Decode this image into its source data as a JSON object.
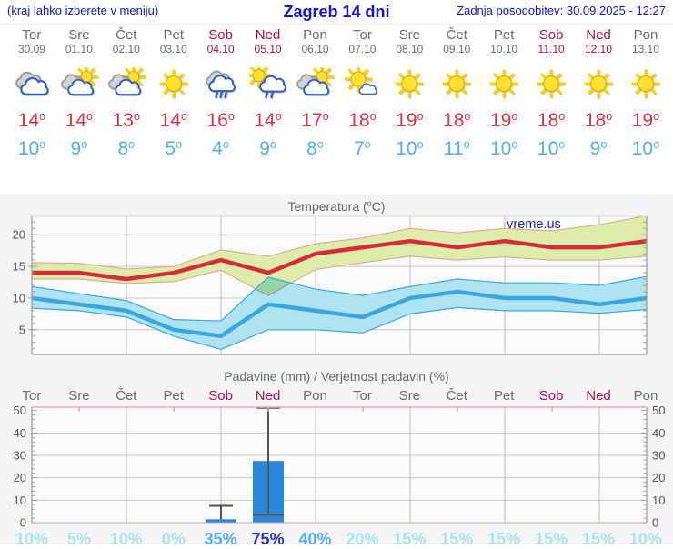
{
  "header": {
    "menu_hint": "(kraj lahko izberete v meniju)",
    "title": "Zagreb 14 dni",
    "last_update": "Zadnja posodobitev: 30.09.2025 - 12:27"
  },
  "units": {
    "degree_superscript": "o",
    "percent": "%"
  },
  "colors": {
    "header_blue": "#1313cd",
    "weekday_gray": "#6b6b6b",
    "weekend_red": "#b0104e",
    "tmax_red": "#dd2f3d",
    "tmin_blue": "#4fb0ea",
    "chart_title_gray": "#666666",
    "max_band_green": "#dcedaa",
    "band_edge_salmon": "#e89a8a",
    "min_band_blue": "#aee4f2",
    "max_line_red": "#d62b3a",
    "min_line_blue": "#3aa6e0",
    "bar_blue": "#2b87d8",
    "whisker_gray": "#555555",
    "grid_gray": "#c9c9c9",
    "vgrid_gray": "#bcbcbc",
    "axis_gray": "#999999",
    "tick_label_gray": "#555555",
    "pink_axis": "#f2a2b2",
    "plot_bg": "#fbfbfb",
    "prob_low": "#a7e3f2",
    "prob_mid": "#55aeee",
    "prob_high": "#2533cc",
    "watermark_blue": "#1d1dc9"
  },
  "days": [
    {
      "name": "Tor",
      "date": "30.09",
      "weekend": false,
      "icon": "cloudy",
      "tmax": "14",
      "tmin": "10"
    },
    {
      "name": "Sre",
      "date": "01.10",
      "weekend": false,
      "icon": "partly-cloudy",
      "tmax": "14",
      "tmin": "9"
    },
    {
      "name": "Čet",
      "date": "02.10",
      "weekend": false,
      "icon": "partly-cloudy",
      "tmax": "13",
      "tmin": "8"
    },
    {
      "name": "Pet",
      "date": "03.10",
      "weekend": false,
      "icon": "sunny",
      "tmax": "14",
      "tmin": "5"
    },
    {
      "name": "Sob",
      "date": "04.10",
      "weekend": true,
      "icon": "rain",
      "tmax": "16",
      "tmin": "4"
    },
    {
      "name": "Ned",
      "date": "05.10",
      "weekend": true,
      "icon": "sun-rain",
      "tmax": "14",
      "tmin": "9"
    },
    {
      "name": "Pon",
      "date": "06.10",
      "weekend": false,
      "icon": "partly-cloudy",
      "tmax": "17",
      "tmin": "8"
    },
    {
      "name": "Tor",
      "date": "07.10",
      "weekend": false,
      "icon": "mostly-sunny",
      "tmax": "18",
      "tmin": "7"
    },
    {
      "name": "Sre",
      "date": "08.10",
      "weekend": false,
      "icon": "sunny",
      "tmax": "19",
      "tmin": "10"
    },
    {
      "name": "Čet",
      "date": "09.10",
      "weekend": false,
      "icon": "sunny",
      "tmax": "18",
      "tmin": "11"
    },
    {
      "name": "Pet",
      "date": "10.10",
      "weekend": false,
      "icon": "sunny",
      "tmax": "19",
      "tmin": "10"
    },
    {
      "name": "Sob",
      "date": "11.10",
      "weekend": true,
      "icon": "sunny",
      "tmax": "18",
      "tmin": "10"
    },
    {
      "name": "Ned",
      "date": "12.10",
      "weekend": true,
      "icon": "sunny",
      "tmax": "18",
      "tmin": "9"
    },
    {
      "name": "Pon",
      "date": "13.10",
      "weekend": false,
      "icon": "sunny",
      "tmax": "19",
      "tmin": "10"
    }
  ],
  "temp_chart": {
    "title_prefix": "Temperatura (",
    "title_deg": "o",
    "title_suffix": "C)",
    "watermark": "vreme.us"
  },
  "precip_chart": {
    "title": "Padavine (mm) / Verjetnost padavin (%)"
  },
  "chart_data": [
    {
      "type": "line",
      "title": "Temperatura (°C)",
      "categories": [
        "Tor 30.09",
        "Sre 01.10",
        "Čet 02.10",
        "Pet 03.10",
        "Sob 04.10",
        "Ned 05.10",
        "Pon 06.10",
        "Tor 07.10",
        "Sre 08.10",
        "Čet 09.10",
        "Pet 10.10",
        "Sob 11.10",
        "Ned 12.10",
        "Pon 13.10"
      ],
      "series": [
        {
          "name": "max temperature",
          "color": "#d62b3a",
          "values": [
            14,
            14,
            13,
            14,
            16,
            14,
            17,
            18,
            19,
            18,
            19,
            18,
            18,
            19
          ]
        },
        {
          "name": "min temperature",
          "color": "#3aa6e0",
          "values": [
            10,
            9,
            8,
            5,
            4,
            9,
            8,
            7,
            10,
            11,
            10,
            10,
            9,
            10
          ]
        },
        {
          "name": "max range upper",
          "values": [
            15.6,
            15.5,
            14.6,
            15.0,
            17.6,
            16.6,
            18.6,
            19.5,
            21.0,
            20.3,
            21.0,
            20.6,
            21.6,
            23.0
          ]
        },
        {
          "name": "max range lower",
          "values": [
            13.0,
            13.0,
            12.3,
            12.6,
            14.4,
            10.4,
            14.5,
            15.6,
            16.6,
            16.0,
            16.5,
            16.0,
            16.0,
            16.6
          ]
        },
        {
          "name": "min range upper",
          "values": [
            11.8,
            10.7,
            9.6,
            6.6,
            6.4,
            13.3,
            11.4,
            10.4,
            11.8,
            13.0,
            12.4,
            12.4,
            12.0,
            13.4
          ]
        },
        {
          "name": "min range lower",
          "values": [
            8.4,
            8.0,
            7.0,
            4.0,
            1.9,
            5.0,
            5.0,
            4.5,
            7.5,
            8.5,
            8.0,
            8.0,
            7.6,
            8.2
          ]
        }
      ],
      "ylim": [
        1.1,
        22.9
      ],
      "yticks": [
        5,
        10,
        15,
        20
      ],
      "grid": "on",
      "vertical_grid_day_indices": [
        2,
        4,
        6,
        8,
        10,
        12
      ],
      "legend": "none"
    },
    {
      "type": "bar",
      "title": "Padavine (mm) / Verjetnost padavin (%)",
      "categories": [
        "Tor",
        "Sre",
        "Čet",
        "Pet",
        "Sob",
        "Ned",
        "Pon",
        "Tor",
        "Sre",
        "Čet",
        "Pet",
        "Sob",
        "Ned",
        "Pon"
      ],
      "values_mm": [
        0,
        0,
        0,
        0,
        1.5,
        27.5,
        0,
        0,
        0,
        0,
        0,
        0,
        0,
        0
      ],
      "whisker_mm": [
        null,
        null,
        null,
        null,
        {
          "top": 7.5
        },
        {
          "low": 3.5,
          "top": 52,
          "clipped_at_top": true
        },
        null,
        null,
        null,
        null,
        null,
        null,
        null,
        null
      ],
      "probability_pct": [
        10,
        5,
        10,
        0,
        35,
        75,
        40,
        20,
        15,
        15,
        15,
        15,
        15,
        10
      ],
      "ylim": [
        0,
        51.5
      ],
      "yticks": [
        0,
        10,
        20,
        30,
        40,
        50
      ],
      "grid": "on",
      "vertical_grid_day_indices": [
        2,
        4,
        6,
        8,
        10,
        12
      ],
      "legend": "none"
    }
  ]
}
